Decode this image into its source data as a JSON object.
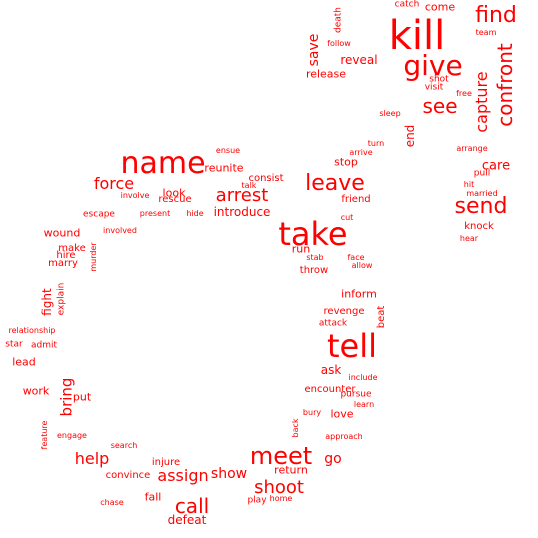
{
  "colors": {
    "text": "#ff0000",
    "background": "#ffffff"
  },
  "words": [
    "kill",
    "find",
    "give",
    "confront",
    "capture",
    "see",
    "name",
    "take",
    "tell",
    "send",
    "meet",
    "leave",
    "arrest",
    "force",
    "call",
    "shoot",
    "assign",
    "help",
    "bring",
    "save",
    "reveal",
    "release",
    "follow",
    "death",
    "catch",
    "come",
    "team",
    "shot",
    "visit",
    "free",
    "end",
    "sleep",
    "turn",
    "arrive",
    "stop",
    "care",
    "pull",
    "arrange",
    "hit",
    "married",
    "knock",
    "hear",
    "reunite",
    "ensue",
    "consist",
    "talk",
    "look",
    "rescue",
    "involve",
    "friend",
    "introduce",
    "hide",
    "present",
    "escape",
    "involved",
    "cut",
    "run",
    "stab",
    "face",
    "allow",
    "throw",
    "wound",
    "make",
    "hire",
    "marry",
    "murder",
    "fight",
    "explain",
    "relationship",
    "star",
    "admit",
    "lead",
    "inform",
    "revenge",
    "attack",
    "beat",
    "include",
    "ask",
    "encounter",
    "pursue",
    "learn",
    "work",
    "put",
    "bury",
    "love",
    "back",
    "feature",
    "engage",
    "search",
    "approach",
    "injure",
    "go",
    "show",
    "return",
    "convince",
    "chase",
    "fall",
    "play",
    "home",
    "defeat"
  ]
}
